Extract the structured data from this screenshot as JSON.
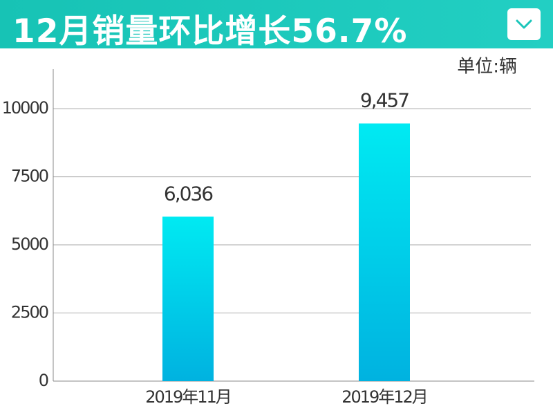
{
  "chart_data": {
    "type": "bar",
    "title": "12月销量环比增长56.7%",
    "unit": "单位:辆",
    "categories": [
      "2019年11月",
      "2019年12月"
    ],
    "values": [
      6036,
      9457
    ],
    "value_labels": [
      "6,036",
      "9,457"
    ],
    "ylim": [
      0,
      11450
    ],
    "yticks": [
      0,
      2500,
      5000,
      7500,
      10000
    ],
    "grid": true,
    "color": [
      "#00eaf2",
      "#00b2e0"
    ]
  }
}
